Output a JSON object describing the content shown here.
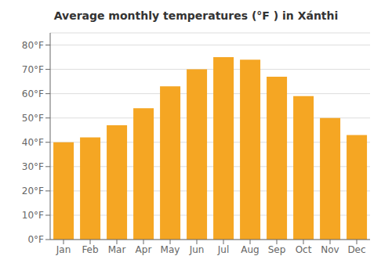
{
  "chart_data": {
    "type": "bar",
    "title": "Average monthly temperatures (°F ) in Xánthi",
    "categories": [
      "Jan",
      "Feb",
      "Mar",
      "Apr",
      "May",
      "Jun",
      "Jul",
      "Aug",
      "Sep",
      "Oct",
      "Nov",
      "Dec"
    ],
    "values": [
      40,
      42,
      47,
      54,
      63,
      70,
      75,
      74,
      67,
      59,
      50,
      43
    ],
    "color": "#F5A623",
    "ylim": [
      0,
      85
    ],
    "yticks": [
      {
        "value": 0,
        "label": "0°F"
      },
      {
        "value": 10,
        "label": "10°F"
      },
      {
        "value": 20,
        "label": "20°F"
      },
      {
        "value": 30,
        "label": "30°F"
      },
      {
        "value": 40,
        "label": "40°F"
      },
      {
        "value": 50,
        "label": "50°F"
      },
      {
        "value": 60,
        "label": "60°F"
      },
      {
        "value": 70,
        "label": "70°F"
      },
      {
        "value": 80,
        "label": "80°F"
      }
    ],
    "grid": true
  }
}
